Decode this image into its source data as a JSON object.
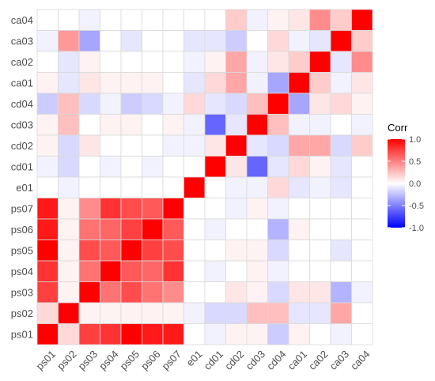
{
  "chart_data": {
    "type": "heatmap",
    "title": "",
    "xlabel": "",
    "ylabel": "",
    "x_categories": [
      "ps01",
      "ps02",
      "ps03",
      "ps04",
      "ps05",
      "ps06",
      "ps07",
      "e01",
      "cd01",
      "cd02",
      "cd03",
      "cd04",
      "ca01",
      "ca02",
      "ca03",
      "ca04"
    ],
    "y_categories": [
      "ca04",
      "ca03",
      "ca02",
      "ca01",
      "cd04",
      "cd03",
      "cd02",
      "cd01",
      "e01",
      "ps07",
      "ps06",
      "ps05",
      "ps04",
      "ps03",
      "ps02",
      "ps01"
    ],
    "matrix": [
      [
        0.0,
        0.0,
        -0.05,
        0.0,
        0.0,
        0.0,
        0.0,
        0.0,
        0.0,
        0.2,
        -0.05,
        0.05,
        0.1,
        0.45,
        0.2,
        1.0
      ],
      [
        -0.05,
        0.4,
        -0.35,
        0.0,
        -0.1,
        0.0,
        0.0,
        -0.1,
        -0.1,
        -0.2,
        0.0,
        0.15,
        -0.05,
        -0.1,
        1.0,
        0.2
      ],
      [
        0.0,
        -0.1,
        0.05,
        0.0,
        0.0,
        0.0,
        0.0,
        -0.05,
        0.05,
        0.35,
        -0.05,
        0.1,
        0.2,
        1.0,
        -0.1,
        0.45
      ],
      [
        0.05,
        -0.1,
        0.1,
        0.05,
        0.05,
        0.05,
        0.0,
        -0.1,
        0.15,
        0.35,
        -0.05,
        -0.35,
        1.0,
        0.2,
        -0.05,
        0.1
      ],
      [
        -0.2,
        0.25,
        -0.15,
        -0.05,
        -0.2,
        -0.15,
        -0.05,
        0.15,
        -0.1,
        -0.15,
        0.25,
        1.0,
        -0.35,
        0.1,
        0.15,
        0.05
      ],
      [
        0.05,
        0.25,
        0.0,
        0.05,
        0.05,
        0.0,
        0.05,
        -0.05,
        -0.6,
        -0.1,
        1.0,
        0.25,
        -0.05,
        -0.05,
        0.0,
        -0.05
      ],
      [
        0.05,
        -0.15,
        0.1,
        0.0,
        0.0,
        0.0,
        -0.05,
        -0.05,
        0.1,
        1.0,
        -0.1,
        -0.15,
        0.35,
        0.35,
        -0.15,
        0.2
      ],
      [
        -0.05,
        -0.15,
        0.0,
        -0.05,
        0.0,
        -0.05,
        0.0,
        0.0,
        1.0,
        0.1,
        -0.6,
        -0.1,
        0.15,
        0.05,
        -0.1,
        0.0
      ],
      [
        0.0,
        -0.05,
        0.0,
        0.0,
        0.0,
        0.0,
        0.0,
        1.0,
        0.0,
        -0.05,
        -0.05,
        0.15,
        -0.1,
        -0.05,
        -0.1,
        0.0
      ],
      [
        0.9,
        0.05,
        0.45,
        0.8,
        0.7,
        0.65,
        1.0,
        0.0,
        0.0,
        -0.05,
        0.05,
        -0.05,
        0.0,
        0.0,
        0.0,
        0.0
      ],
      [
        0.9,
        0.05,
        0.55,
        0.6,
        0.75,
        1.0,
        0.65,
        0.0,
        -0.05,
        0.0,
        0.0,
        -0.3,
        0.05,
        0.0,
        0.0,
        0.0
      ],
      [
        1.0,
        0.05,
        0.7,
        0.65,
        1.0,
        0.75,
        0.7,
        0.0,
        0.0,
        0.05,
        0.05,
        -0.15,
        0.0,
        0.0,
        -0.1,
        0.0
      ],
      [
        0.8,
        0.05,
        0.55,
        1.0,
        0.65,
        0.6,
        0.8,
        0.0,
        -0.05,
        0.0,
        0.05,
        -0.05,
        0.0,
        0.0,
        0.0,
        0.0
      ],
      [
        0.75,
        0.05,
        1.0,
        0.55,
        0.7,
        0.55,
        0.45,
        0.0,
        0.0,
        0.1,
        0.05,
        -0.15,
        0.1,
        0.1,
        -0.3,
        -0.05
      ],
      [
        0.15,
        1.0,
        0.05,
        0.05,
        0.05,
        0.05,
        0.05,
        -0.05,
        -0.15,
        -0.15,
        0.25,
        0.25,
        -0.1,
        -0.1,
        0.35,
        0.0
      ],
      [
        1.0,
        0.15,
        0.75,
        0.8,
        1.0,
        0.9,
        0.9,
        0.0,
        -0.05,
        0.05,
        0.05,
        -0.2,
        0.05,
        0.0,
        -0.05,
        0.0
      ]
    ],
    "colorscale": {
      "low": "#0000ff",
      "mid": "#ffffff",
      "high": "#ff0000",
      "range": [
        -1,
        1
      ]
    },
    "legend": {
      "title": "Corr",
      "position": "right",
      "ticks": [
        "1.0",
        "0.5",
        "0.0",
        "-0.5",
        "-1.0"
      ],
      "tick_values": [
        1.0,
        0.5,
        0.0,
        -0.5,
        -1.0
      ]
    },
    "grid": true,
    "grid_color": "#d9d9d9"
  }
}
